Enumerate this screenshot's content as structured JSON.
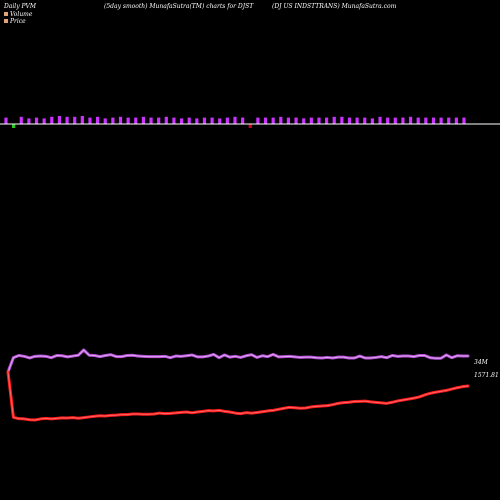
{
  "header": {
    "left": "Daily PVM",
    "center": "(5day smooth) MunafaSutra(TM) charts for DJST",
    "right": "(DJ US INDSTTRANS) MunafaSutra.com"
  },
  "legend": {
    "volume_label": "Volume",
    "price_label": "Price",
    "volume_swatch": "#e3a27a",
    "price_swatch": "#e3a27a"
  },
  "colors": {
    "background": "#000000",
    "up": "#cc33ff",
    "down": "#22cc22",
    "neutral": "#cc0022",
    "baseline": "#ffffff",
    "price_line": "#ff1a1a",
    "price_line_inner": "#ff6666",
    "volume_line": "#b44fd6",
    "volume_line_inner": "#e0a8f0"
  },
  "labels": {
    "volume_end": "34M",
    "price_end": "1571.81"
  },
  "chart_data": {
    "type": "line",
    "title": "",
    "xlabel": "",
    "ylabel": "",
    "grid": false,
    "volume_bars": {
      "values": [
        0.8,
        -0.5,
        0.9,
        0.7,
        0.8,
        0.7,
        0.9,
        1.0,
        0.9,
        0.9,
        1.0,
        0.8,
        0.9,
        0.7,
        0.8,
        0.9,
        0.8,
        0.8,
        0.9,
        0.8,
        0.8,
        0.9,
        0.8,
        0.7,
        0.8,
        0.7,
        0.8,
        0.8,
        0.7,
        0.8,
        0.9,
        0.8,
        -0.5,
        0.8,
        0.8,
        0.8,
        0.9,
        0.8,
        0.8,
        0.7,
        0.8,
        0.8,
        0.8,
        0.9,
        0.9,
        0.8,
        0.8,
        0.8,
        0.7,
        0.9,
        0.8,
        0.8,
        0.8,
        0.9,
        0.8,
        0.8,
        0.8,
        0.8,
        0.8,
        0.8,
        0.8
      ],
      "colors": [
        "up",
        "down",
        "up",
        "up",
        "up",
        "up",
        "up",
        "up",
        "up",
        "up",
        "up",
        "up",
        "up",
        "up",
        "up",
        "up",
        "up",
        "up",
        "up",
        "up",
        "up",
        "up",
        "up",
        "up",
        "up",
        "up",
        "up",
        "up",
        "up",
        "up",
        "up",
        "up",
        "neutral",
        "up",
        "up",
        "up",
        "up",
        "up",
        "up",
        "up",
        "up",
        "up",
        "up",
        "up",
        "up",
        "up",
        "up",
        "up",
        "up",
        "up",
        "up",
        "up",
        "up",
        "up",
        "up",
        "up",
        "up",
        "up",
        "up",
        "up",
        "up"
      ]
    },
    "series": [
      {
        "name": "Volume",
        "values": [
          380,
          432,
          440,
          437,
          431,
          437,
          438,
          437,
          432,
          440,
          439,
          435,
          438,
          441,
          460,
          441,
          440,
          436,
          440,
          443,
          436,
          436,
          440,
          441,
          438,
          437,
          436,
          436,
          436,
          437,
          432,
          438,
          437,
          439,
          442,
          435,
          435,
          438,
          444,
          432,
          442,
          434,
          437,
          433,
          439,
          443,
          433,
          439,
          436,
          444,
          435,
          436,
          437,
          435,
          433,
          434,
          434,
          432,
          431,
          433,
          431,
          434,
          434,
          431,
          431,
          438,
          431,
          431,
          433,
          436,
          432,
          440,
          437,
          438,
          438,
          436,
          440,
          440,
          432,
          430,
          430,
          442,
          432,
          439,
          438,
          438
        ]
      },
      {
        "name": "Price",
        "values": [
          1520,
          1180,
          1170,
          1168,
          1162,
          1160,
          1168,
          1172,
          1168,
          1172,
          1176,
          1175,
          1178,
          1173,
          1178,
          1183,
          1188,
          1192,
          1190,
          1195,
          1197,
          1200,
          1200,
          1205,
          1205,
          1203,
          1203,
          1205,
          1212,
          1208,
          1210,
          1213,
          1217,
          1220,
          1214,
          1220,
          1225,
          1230,
          1228,
          1232,
          1225,
          1220,
          1212,
          1208,
          1215,
          1212,
          1216,
          1222,
          1228,
          1232,
          1240,
          1248,
          1255,
          1252,
          1248,
          1250,
          1258,
          1262,
          1265,
          1268,
          1275,
          1285,
          1290,
          1293,
          1299,
          1300,
          1302,
          1296,
          1292,
          1288,
          1285,
          1293,
          1303,
          1310,
          1317,
          1324,
          1333,
          1348,
          1360,
          1368,
          1375,
          1382,
          1392,
          1402,
          1410,
          1415
        ]
      }
    ]
  }
}
